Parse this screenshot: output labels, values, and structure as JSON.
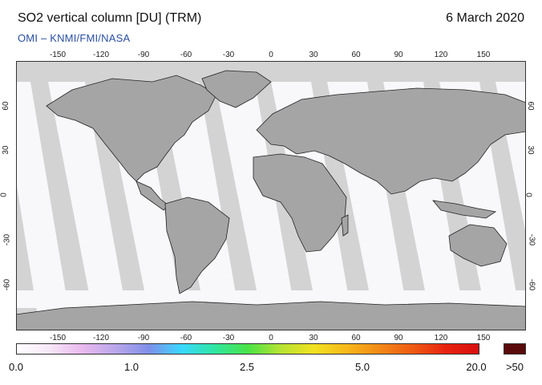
{
  "header": {
    "title": "SO2 vertical column [DU] (TRM)",
    "date": "6 March 2020",
    "credit": "OMI – KNMI/FMI/NASA"
  },
  "axes": {
    "lon_ticks": [
      "-150",
      "-120",
      "-90",
      "-60",
      "-30",
      "0",
      "30",
      "60",
      "90",
      "120",
      "150"
    ],
    "lat_ticks": [
      "60",
      "30",
      "0",
      "-30",
      "-60"
    ]
  },
  "colorbar": {
    "labels": [
      "0.0",
      "1.0",
      "2.5",
      "5.0",
      "20.0",
      ">50"
    ],
    "colors": [
      "#ffffff",
      "#f6e6f6",
      "#e9b8ee",
      "#b9a6ea",
      "#7f8fe9",
      "#38d8ff",
      "#2fe6a0",
      "#49e347",
      "#b6e332",
      "#f1e220",
      "#f7b81a",
      "#f28916",
      "#ef5a14",
      "#e8230f",
      "#d80f0f"
    ],
    "over_color": "#5a0a0a"
  },
  "map_colors": {
    "ocean_no_data": "#d3d3d3",
    "land": "#a5a5a5",
    "measured": "#f8f8fb"
  }
}
